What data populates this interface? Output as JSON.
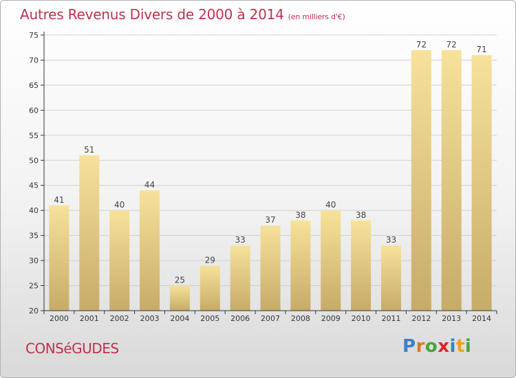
{
  "title": "Autres Revenus Divers de 2000 à 2014",
  "subtitle": "(en milliers d'€)",
  "commune": "CONSéGUDES",
  "brand": {
    "letters": [
      {
        "ch": "P",
        "color": "#3a7fc8"
      },
      {
        "ch": "r",
        "color": "#e07a1f"
      },
      {
        "ch": "o",
        "color": "#4aa43a"
      },
      {
        "ch": "x",
        "color": "#d9262b"
      },
      {
        "ch": "i",
        "color": "#3a7fc8"
      },
      {
        "ch": "t",
        "color": "#f0a020"
      },
      {
        "ch": "i",
        "color": "#4aa43a"
      }
    ]
  },
  "colors": {
    "title": "#c0304d",
    "bar_light": "#f7e29a",
    "bar_dark": "#c7ab68",
    "axis": "#333333",
    "grid": "#cfcfcf"
  },
  "chart_data": {
    "type": "bar",
    "title": "Autres Revenus Divers de 2000 à 2014",
    "subtitle": "(en milliers d'€)",
    "categories": [
      "2000",
      "2001",
      "2002",
      "2003",
      "2004",
      "2005",
      "2006",
      "2007",
      "2008",
      "2009",
      "2010",
      "2011",
      "2012",
      "2013",
      "2014"
    ],
    "values": [
      41,
      51,
      40,
      44,
      25,
      29,
      33,
      37,
      38,
      40,
      38,
      33,
      72,
      72,
      71
    ],
    "ylim": [
      20,
      75
    ],
    "yticks": [
      20,
      25,
      30,
      35,
      40,
      45,
      50,
      55,
      60,
      65,
      70,
      75
    ],
    "grid": true,
    "xlabel": "",
    "ylabel": ""
  }
}
